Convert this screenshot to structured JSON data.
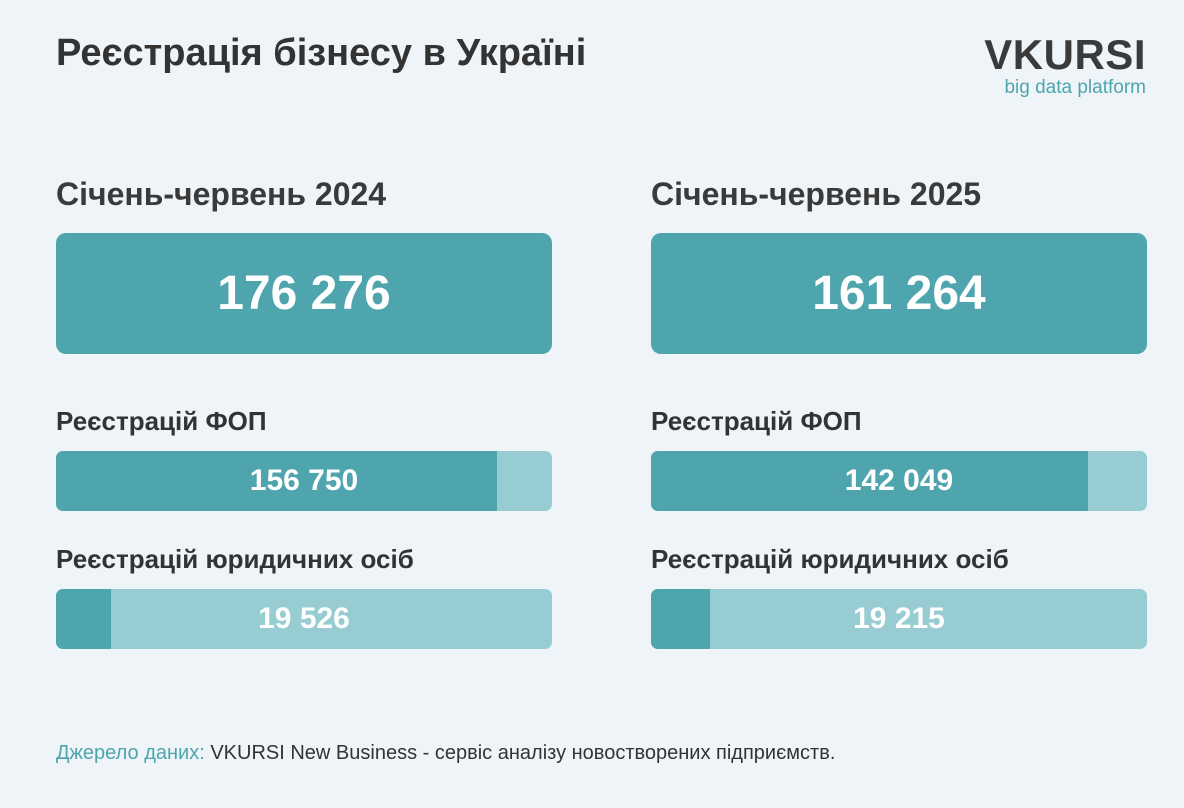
{
  "title": "Реєстрація бізнесу в Україні",
  "logo": {
    "name": "VKURSI",
    "tagline": "big data platform"
  },
  "chart_data": {
    "type": "bar",
    "colors": {
      "primary": "#4fa5ad",
      "secondary": "#97cdd2",
      "background": "#eef4f8"
    },
    "panels": [
      {
        "period": "Січень-червень 2024",
        "total": 176276,
        "total_label": "176 276",
        "metrics": [
          {
            "label": "Реєстрацій ФОП",
            "value": 156750,
            "value_label": "156 750",
            "share_of_total": 0.889
          },
          {
            "label": "Реєстрацій юридичних осіб",
            "value": 19526,
            "value_label": "19 526",
            "share_of_total": 0.111
          }
        ]
      },
      {
        "period": "Січень-червень 2025",
        "total": 161264,
        "total_label": "161 264",
        "metrics": [
          {
            "label": "Реєстрацій ФОП",
            "value": 142049,
            "value_label": "142 049",
            "share_of_total": 0.881
          },
          {
            "label": "Реєстрацій юридичних осіб",
            "value": 19215,
            "value_label": "19 215",
            "share_of_total": 0.119
          }
        ]
      }
    ]
  },
  "source": {
    "label": "Джерело даних:",
    "text": "VKURSI New Business - сервіс аналізу новостворених підприємств."
  }
}
